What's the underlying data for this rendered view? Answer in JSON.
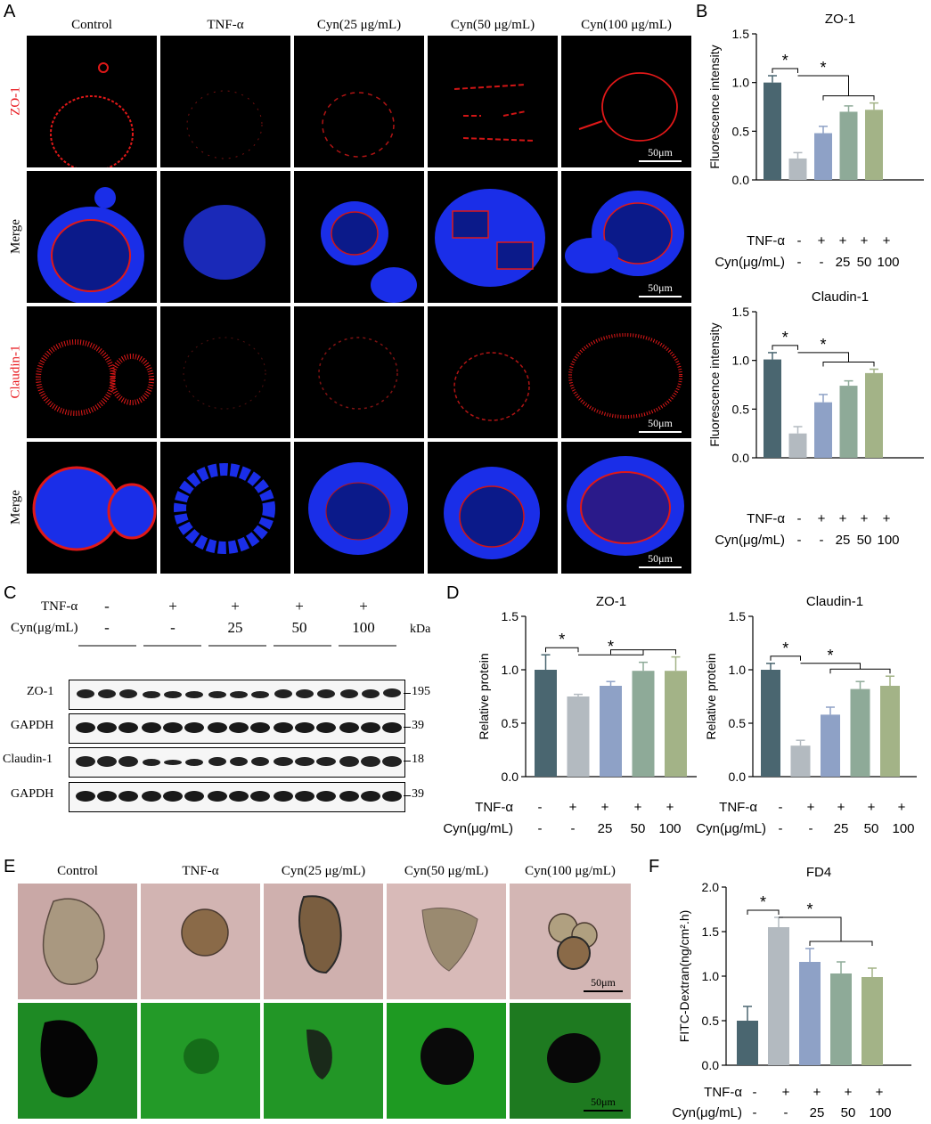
{
  "panels": {
    "A": "A",
    "B": "B",
    "C": "C",
    "D": "D",
    "E": "E",
    "F": "F"
  },
  "groups": [
    "Control",
    "TNF-α",
    "Cyn(25 μg/mL)",
    "Cyn(50 μg/mL)",
    "Cyn(100 μg/mL)"
  ],
  "row_labels": [
    "ZO-1",
    "Merge",
    "Claudin-1",
    "Merge"
  ],
  "scale_bar": "50μm",
  "condition_rows": {
    "tnf_label": "TNF-α",
    "cyn_label": "Cyn(μg/mL)",
    "tnf": [
      "-",
      "+",
      "+",
      "+",
      "+"
    ],
    "cyn": [
      "-",
      "-",
      "25",
      "50",
      "100"
    ]
  },
  "western": {
    "kda_label": "kDa",
    "rows": [
      {
        "name": "ZO-1",
        "kda": "195"
      },
      {
        "name": "GAPDH",
        "kda": "39"
      },
      {
        "name": "Claudin-1",
        "kda": "18"
      },
      {
        "name": "GAPDH",
        "kda": "39"
      }
    ]
  },
  "chart_data": [
    {
      "id": "B-top",
      "type": "bar",
      "title": "ZO-1",
      "ylabel": "Fluorescence intensity",
      "ylim": [
        0,
        1.5
      ],
      "yticks": [
        "0.0",
        "0.5",
        "1.0",
        "1.5"
      ],
      "categories": [
        "Control",
        "TNF-α",
        "Cyn 25",
        "Cyn 50",
        "Cyn 100"
      ],
      "values": [
        1.0,
        0.22,
        0.48,
        0.7,
        0.72
      ],
      "errors": [
        0.07,
        0.06,
        0.07,
        0.06,
        0.07
      ],
      "colors": [
        "#4a6670",
        "#b3bac0",
        "#8ea1c6",
        "#8eaa98",
        "#a3b387"
      ],
      "significance": [
        "*",
        "*"
      ]
    },
    {
      "id": "B-bottom",
      "type": "bar",
      "title": "Claudin-1",
      "ylabel": "Fluorescence intensity",
      "ylim": [
        0,
        1.5
      ],
      "yticks": [
        "0.0",
        "0.5",
        "1.0",
        "1.5"
      ],
      "categories": [
        "Control",
        "TNF-α",
        "Cyn 25",
        "Cyn 50",
        "Cyn 100"
      ],
      "values": [
        1.01,
        0.25,
        0.57,
        0.74,
        0.87
      ],
      "errors": [
        0.07,
        0.07,
        0.08,
        0.05,
        0.04
      ],
      "colors": [
        "#4a6670",
        "#b3bac0",
        "#8ea1c6",
        "#8eaa98",
        "#a3b387"
      ],
      "significance": [
        "*",
        "*"
      ]
    },
    {
      "id": "D-left",
      "type": "bar",
      "title": "ZO-1",
      "ylabel": "Relative protein",
      "ylim": [
        0,
        1.5
      ],
      "yticks": [
        "0.0",
        "0.5",
        "1.0",
        "1.5"
      ],
      "categories": [
        "Control",
        "TNF-α",
        "Cyn 25",
        "Cyn 50",
        "Cyn 100"
      ],
      "values": [
        1.0,
        0.75,
        0.85,
        0.99,
        0.99
      ],
      "errors": [
        0.14,
        0.02,
        0.04,
        0.08,
        0.13
      ],
      "colors": [
        "#4a6670",
        "#b3bac0",
        "#8ea1c6",
        "#8eaa98",
        "#a3b387"
      ],
      "significance": [
        "*",
        "*"
      ]
    },
    {
      "id": "D-right",
      "type": "bar",
      "title": "Claudin-1",
      "ylabel": "Relative protein",
      "ylim": [
        0,
        1.5
      ],
      "yticks": [
        "0.0",
        "0.5",
        "1.0",
        "1.5"
      ],
      "categories": [
        "Control",
        "TNF-α",
        "Cyn 25",
        "Cyn 50",
        "Cyn 100"
      ],
      "values": [
        1.0,
        0.29,
        0.58,
        0.82,
        0.85
      ],
      "errors": [
        0.06,
        0.05,
        0.07,
        0.07,
        0.09
      ],
      "colors": [
        "#4a6670",
        "#b3bac0",
        "#8ea1c6",
        "#8eaa98",
        "#a3b387"
      ],
      "significance": [
        "*",
        "*"
      ]
    },
    {
      "id": "F",
      "type": "bar",
      "title": "FD4",
      "ylabel": "FITC-Dextran(ng/cm².h)",
      "ylim": [
        0,
        2.0
      ],
      "yticks": [
        "0.0",
        "0.5",
        "1.0",
        "1.5",
        "2.0"
      ],
      "categories": [
        "Control",
        "TNF-α",
        "Cyn 25",
        "Cyn 50",
        "Cyn 100"
      ],
      "values": [
        0.5,
        1.55,
        1.16,
        1.03,
        0.99
      ],
      "errors": [
        0.16,
        0.11,
        0.15,
        0.13,
        0.1
      ],
      "colors": [
        "#4a6670",
        "#b3bac0",
        "#8ea1c6",
        "#8eaa98",
        "#a3b387"
      ],
      "significance": [
        "*",
        "*"
      ]
    }
  ]
}
